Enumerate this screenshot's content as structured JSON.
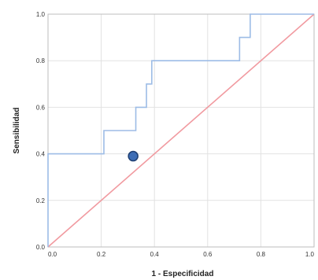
{
  "chart_data": {
    "type": "line",
    "title": "",
    "xlabel": "1 - Especificidad",
    "ylabel": "Sensibilidad",
    "xlim": [
      0,
      1
    ],
    "ylim": [
      0,
      1
    ],
    "grid": true,
    "legend": "none",
    "x_ticks": [
      "0.0",
      "0.2",
      "0.4",
      "0.6",
      "0.8",
      "1.0"
    ],
    "y_ticks": [
      "0.0",
      "0.2",
      "0.4",
      "0.6",
      "0.8",
      "1.0"
    ],
    "colors": {
      "roc": "#9dbce6",
      "reference": "#f19aa0",
      "point_fill": "#3d6db5",
      "point_stroke": "#1f3f72",
      "grid": "#e2e2e2",
      "frame": "#bdbdbd"
    },
    "series": [
      {
        "points": [
          [
            0.0,
            0.0
          ],
          [
            0.0,
            0.4
          ],
          [
            0.21,
            0.4
          ],
          [
            0.21,
            0.5
          ],
          [
            0.33,
            0.5
          ],
          [
            0.33,
            0.6
          ],
          [
            0.37,
            0.6
          ],
          [
            0.37,
            0.7
          ],
          [
            0.39,
            0.7
          ],
          [
            0.39,
            0.8
          ],
          [
            0.72,
            0.8
          ],
          [
            0.72,
            0.9
          ],
          [
            0.74,
            0.9
          ],
          [
            0.76,
            0.9
          ],
          [
            0.76,
            1.0
          ],
          [
            1.0,
            1.0
          ]
        ]
      },
      {
        "points": [
          [
            0.0,
            0.0
          ],
          [
            1.0,
            1.0
          ]
        ]
      }
    ],
    "marker": {
      "x": 0.32,
      "y": 0.39
    }
  }
}
